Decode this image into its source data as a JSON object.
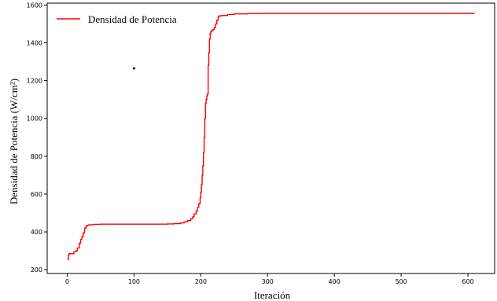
{
  "chart_data": {
    "type": "line",
    "xlabel": "Iteración",
    "ylabel": "Densidad de Potencia (W/cm²)",
    "xlim": [
      -30,
      640
    ],
    "ylim": [
      180,
      1610
    ],
    "x_ticks": [
      0,
      100,
      200,
      300,
      400,
      500,
      600
    ],
    "y_ticks": [
      200,
      400,
      600,
      800,
      1000,
      1200,
      1400,
      1600
    ],
    "grid": false,
    "legend_position": "top-left",
    "series": [
      {
        "name": "Densidad de Potencia",
        "color": "#ff0000",
        "x": [
          0,
          2,
          3,
          8,
          10,
          13,
          15,
          18,
          20,
          22,
          24,
          26,
          28,
          30,
          32,
          35,
          40,
          50,
          80,
          120,
          150,
          160,
          170,
          175,
          180,
          185,
          188,
          190,
          193,
          195,
          197,
          199,
          200,
          201,
          202,
          203,
          204,
          205,
          206,
          207,
          208,
          209,
          210,
          211,
          212,
          213,
          214,
          215,
          216,
          218,
          220,
          222,
          224,
          226,
          228,
          232,
          240,
          250,
          270,
          300,
          400,
          500,
          610
        ],
        "y": [
          255,
          280,
          285,
          285,
          295,
          300,
          315,
          340,
          360,
          375,
          395,
          420,
          430,
          435,
          437,
          438,
          440,
          441,
          441,
          441,
          442,
          444,
          448,
          453,
          460,
          470,
          480,
          495,
          510,
          530,
          550,
          580,
          610,
          650,
          700,
          750,
          820,
          900,
          1000,
          1080,
          1100,
          1120,
          1130,
          1280,
          1350,
          1420,
          1450,
          1460,
          1465,
          1470,
          1480,
          1500,
          1520,
          1540,
          1543,
          1545,
          1550,
          1553,
          1555,
          1556,
          1556,
          1556,
          1556
        ]
      }
    ],
    "annotations": [
      {
        "type": "point",
        "x": 100,
        "y": 1265,
        "color": "#000000"
      }
    ]
  }
}
